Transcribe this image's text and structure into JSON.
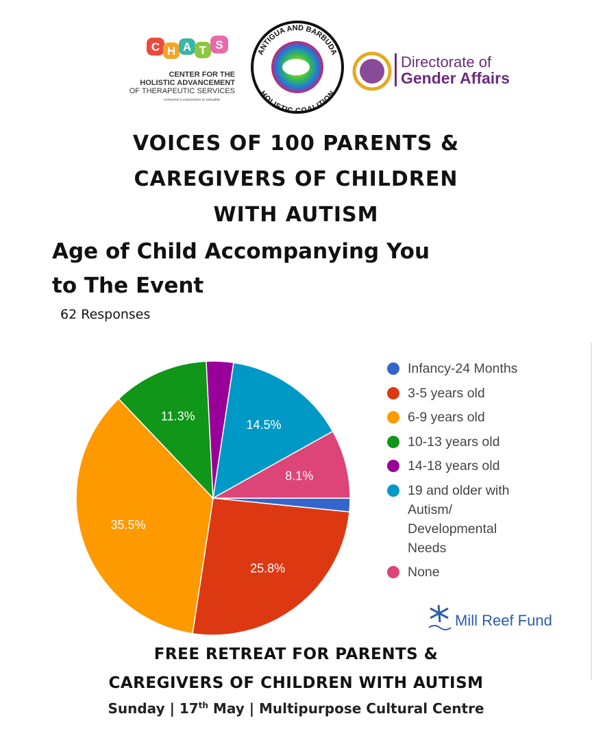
{
  "header": {
    "logos": {
      "chats": {
        "letters": [
          "C",
          "H",
          "A",
          "T",
          "S"
        ],
        "lines": [
          "CENTER FOR THE",
          "HOLISTIC ADVANCEMENT",
          "OF THERAPEUTIC SERVICES"
        ],
        "tagline": "everyone's expression is valuable"
      },
      "coalition": {
        "top": "ANTIGUA AND BARBUDA",
        "bottom": "HOLISTIC COALITION"
      },
      "directorate": {
        "lines": [
          "Directorate of",
          "Gender Affairs"
        ]
      }
    },
    "title_lines": [
      "VOICES OF 100 PARENTS &",
      "CAREGIVERS OF CHILDREN",
      "WITH AUTISM"
    ]
  },
  "chart_data": {
    "type": "pie",
    "title": "Age of Child Accompanying You to The Event",
    "subtitle": "62 Responses",
    "series": [
      {
        "name": "Infancy-24 Months",
        "color": "#3366cc",
        "values": [
          1.6
        ]
      },
      {
        "name": "3-5 years old",
        "color": "#dc3912",
        "values": [
          25.8
        ],
        "value_labels": [
          "25.8%"
        ]
      },
      {
        "name": "6-9 years old",
        "color": "#ff9900",
        "values": [
          35.5
        ],
        "value_labels": [
          "35.5%"
        ]
      },
      {
        "name": "10-13 years old",
        "color": "#109618",
        "values": [
          11.3
        ],
        "value_labels": [
          "11.3%"
        ]
      },
      {
        "name": "14-18 years old",
        "color": "#990099",
        "values": [
          3.2
        ]
      },
      {
        "name": "19 and older with Autism/ Developmental Needs",
        "color": "#0099c6",
        "values": [
          14.5
        ],
        "value_labels": [
          "14.5%"
        ]
      },
      {
        "name": "None",
        "color": "#dd4477",
        "values": [
          8.1
        ],
        "value_labels": [
          "8.1%"
        ]
      }
    ],
    "legend": "right"
  },
  "sponsor": "Mill Reef Fund",
  "footer": {
    "lines": [
      "FREE RETREAT FOR PARENTS &",
      "CAREGIVERS OF CHILDREN WITH AUTISM"
    ],
    "date": {
      "before": "Sunday | 17",
      "sup": "th",
      "after": " May | Multipurpose Cultural Centre"
    }
  }
}
